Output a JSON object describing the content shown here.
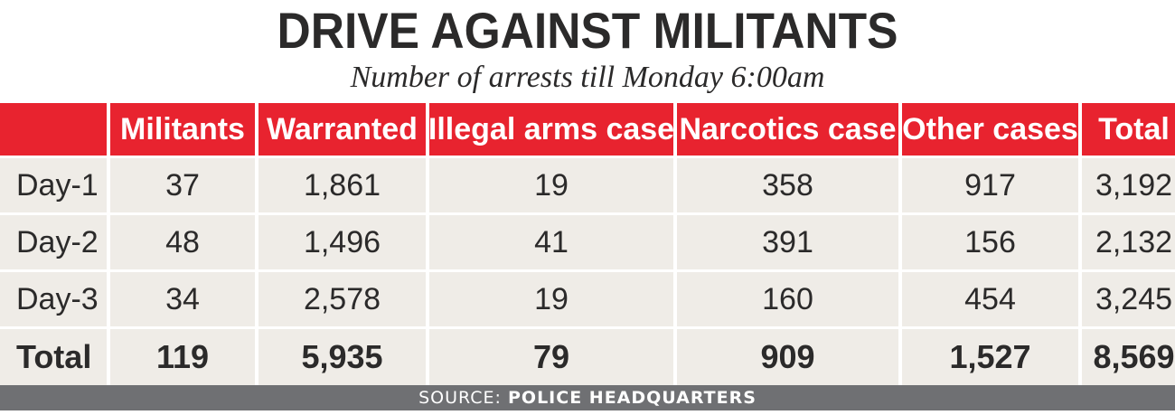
{
  "title": "DRIVE AGAINST MILITANTS",
  "subtitle": "Number of arrests till Monday 6:00am",
  "source_label": "SOURCE:",
  "source_value": "POLICE HEADQUARTERS",
  "colors": {
    "header_red": "#e8232f",
    "cell_bg": "#efece7",
    "footer_gray": "#6f7073"
  },
  "chart_data": {
    "type": "table",
    "title": "DRIVE AGAINST MILITANTS",
    "subtitle": "Number of arrests till Monday 6:00am",
    "columns": [
      "",
      "Militants",
      "Warranted",
      "Illegal arms case",
      "Narcotics case",
      "Other cases",
      "Total"
    ],
    "rows": [
      [
        "Day-1",
        "37",
        "1,861",
        "19",
        "358",
        "917",
        "3,192"
      ],
      [
        "Day-2",
        "48",
        "1,496",
        "41",
        "391",
        "156",
        "2,132"
      ],
      [
        "Day-3",
        "34",
        "2,578",
        "19",
        "160",
        "454",
        "3,245"
      ],
      [
        "Total",
        "119",
        "5,935",
        "79",
        "909",
        "1,527",
        "8,569"
      ]
    ]
  }
}
